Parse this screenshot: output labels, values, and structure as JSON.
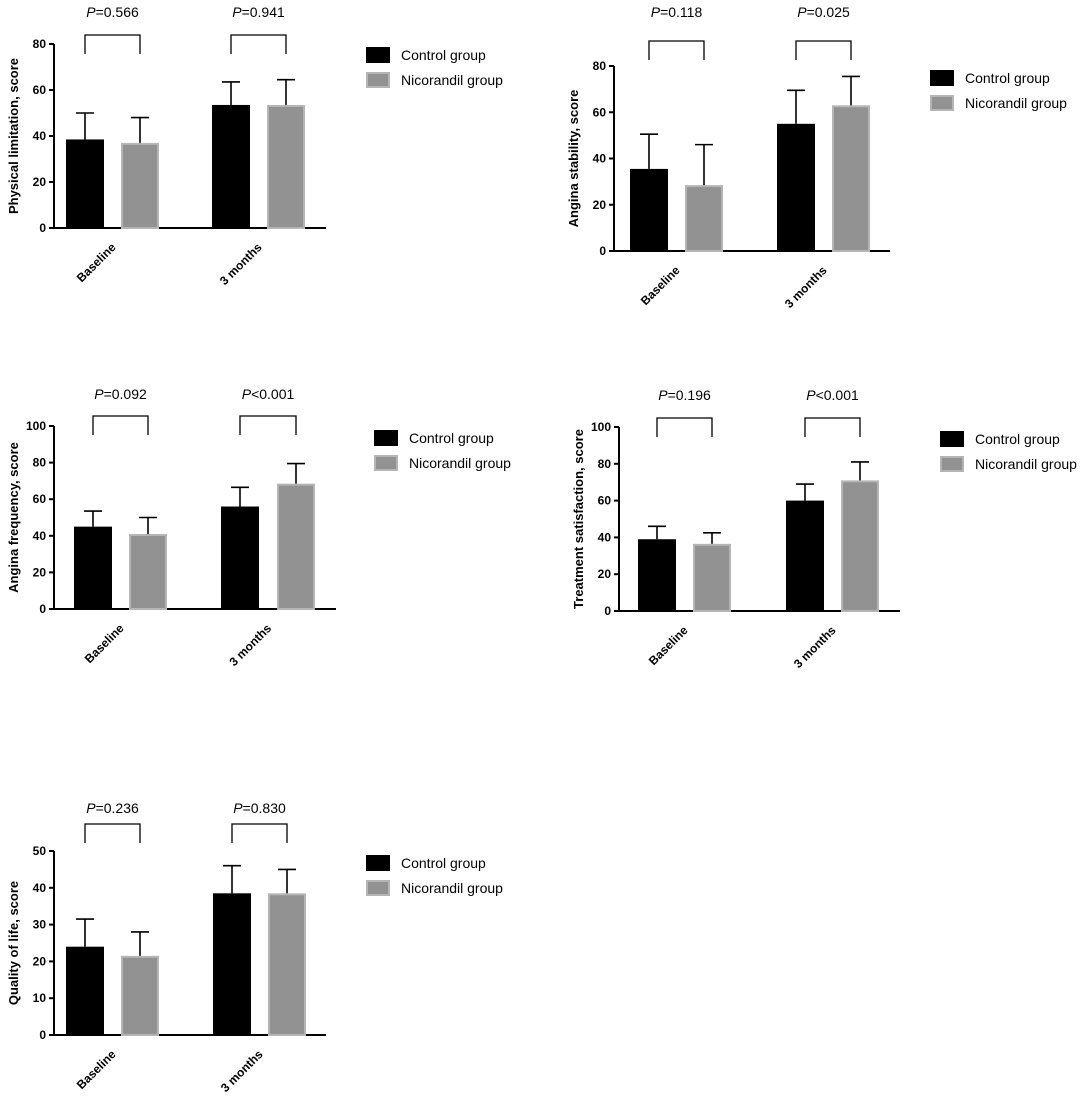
{
  "chart_data": [
    {
      "type": "bar",
      "ylabel": "Physical limitation, score",
      "ylim": [
        0,
        80
      ],
      "yticks": [
        0,
        20,
        40,
        60,
        80
      ],
      "categories": [
        "Baseline",
        "3 months"
      ],
      "series": [
        {
          "name": "Control group",
          "values": [
            38.5,
            53.5
          ],
          "errors": [
            11.5,
            10.0
          ]
        },
        {
          "name": "Nicorandil group",
          "values": [
            37.0,
            53.5
          ],
          "errors": [
            11.0,
            11.0
          ]
        }
      ],
      "p_values": [
        {
          "prefix": "P",
          "text": "=0.566"
        },
        {
          "prefix": "P",
          "text": "=0.941"
        }
      ],
      "legend_placement": "right"
    },
    {
      "type": "bar",
      "ylabel": "Angina stability, score",
      "ylim": [
        0,
        80
      ],
      "yticks": [
        0,
        20,
        40,
        60,
        80
      ],
      "categories": [
        "Baseline",
        "3 months"
      ],
      "series": [
        {
          "name": "Control group",
          "values": [
            35.5,
            55.0
          ],
          "errors": [
            15.0,
            14.5
          ]
        },
        {
          "name": "Nicorandil group",
          "values": [
            28.5,
            63.0
          ],
          "errors": [
            17.5,
            12.5
          ]
        }
      ],
      "p_values": [
        {
          "prefix": "P",
          "text": "=0.118"
        },
        {
          "prefix": "P",
          "text": "=0.025"
        }
      ],
      "legend_placement": "right"
    },
    {
      "type": "bar",
      "ylabel": "Angina frequency, score",
      "ylim": [
        0,
        100
      ],
      "yticks": [
        0,
        20,
        40,
        60,
        80,
        100
      ],
      "categories": [
        "Baseline",
        "3 months"
      ],
      "series": [
        {
          "name": "Control group",
          "values": [
            45.0,
            56.0
          ],
          "errors": [
            8.5,
            10.5
          ]
        },
        {
          "name": "Nicorandil group",
          "values": [
            41.0,
            68.5
          ],
          "errors": [
            9.0,
            11.0
          ]
        }
      ],
      "p_values": [
        {
          "prefix": "P",
          "text": "=0.092"
        },
        {
          "prefix": "P",
          "text": "<0.001"
        }
      ],
      "legend_placement": "right"
    },
    {
      "type": "bar",
      "ylabel": "Treatment satisfaction, score",
      "ylim": [
        0,
        100
      ],
      "yticks": [
        0,
        20,
        40,
        60,
        80,
        100
      ],
      "categories": [
        "Baseline",
        "3 months"
      ],
      "series": [
        {
          "name": "Control group",
          "values": [
            39.0,
            60.0
          ],
          "errors": [
            7.0,
            9.0
          ]
        },
        {
          "name": "Nicorandil group",
          "values": [
            36.5,
            71.0
          ],
          "errors": [
            6.0,
            10.0
          ]
        }
      ],
      "p_values": [
        {
          "prefix": "P",
          "text": "=0.196"
        },
        {
          "prefix": "P",
          "text": "<0.001"
        }
      ],
      "legend_placement": "right"
    },
    {
      "type": "bar",
      "ylabel": "Quality of life, score",
      "ylim": [
        0,
        50
      ],
      "yticks": [
        0,
        10,
        20,
        30,
        40,
        50
      ],
      "categories": [
        "Baseline",
        "3 months"
      ],
      "series": [
        {
          "name": "Control group",
          "values": [
            24.0,
            38.5
          ],
          "errors": [
            7.5,
            7.5
          ]
        },
        {
          "name": "Nicorandil group",
          "values": [
            21.5,
            38.5
          ],
          "errors": [
            6.5,
            6.5
          ]
        }
      ],
      "p_values": [
        {
          "prefix": "P",
          "text": "=0.236"
        },
        {
          "prefix": "P",
          "text": "=0.830"
        }
      ],
      "legend_placement": "right"
    }
  ],
  "colors": {
    "Control group": "#000000",
    "Nicorandil group": "#929292",
    "Nicorandil group edge": "#b5b5b5"
  }
}
